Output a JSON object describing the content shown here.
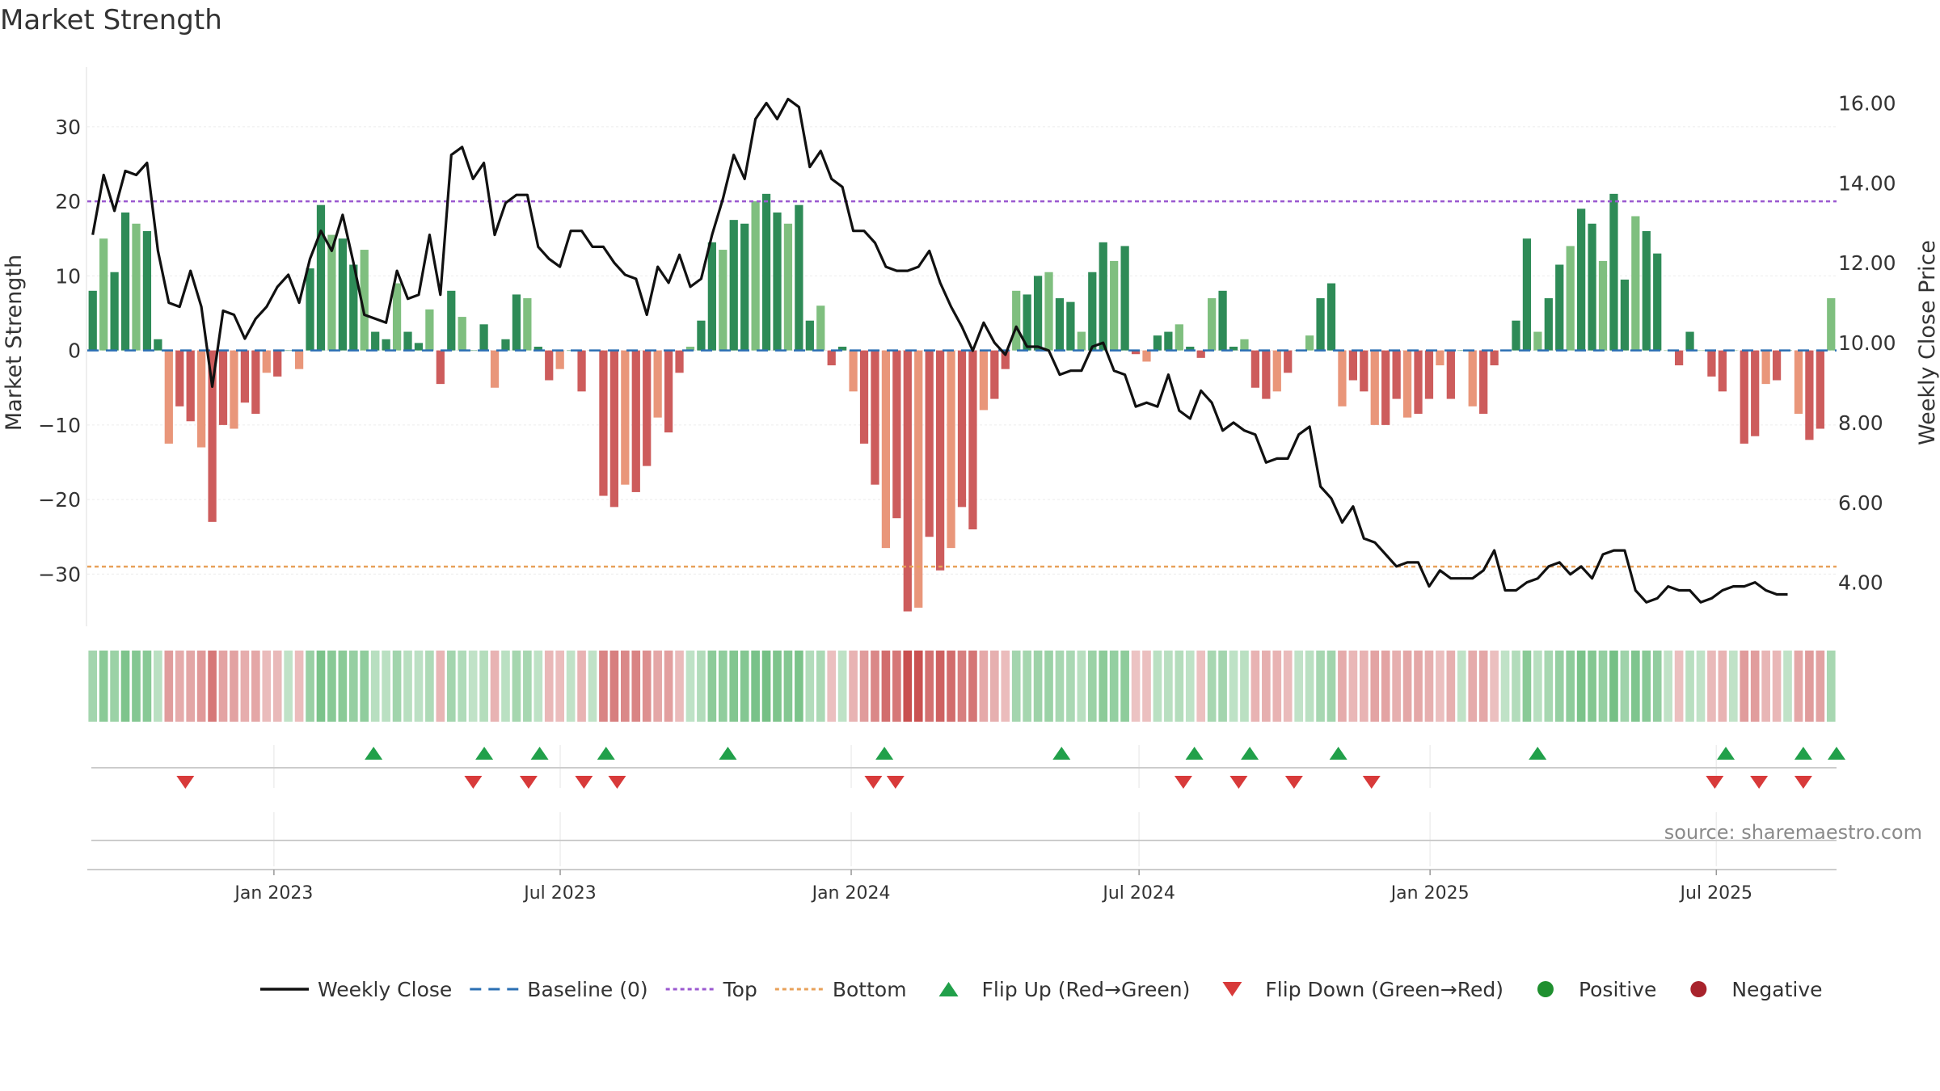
{
  "chart_data": {
    "type": "bar",
    "title": "Market Strength",
    "ylabel": "Market Strength",
    "y2label": "Weekly Close Price",
    "ylim": [
      -37,
      38
    ],
    "y2lim": [
      2.9,
      16.9
    ],
    "yticks": [
      30,
      20,
      10,
      0,
      -10,
      -20,
      -30
    ],
    "y2ticks": [
      16,
      14,
      12,
      10,
      8,
      6,
      4
    ],
    "y2tick_labels": [
      "16.00",
      "14.00",
      "12.00",
      "10.00",
      "8.00",
      "6.00",
      "4.00"
    ],
    "top_line": 20,
    "bottom_line": -29,
    "baseline": 0,
    "start_date": "2022-09-05",
    "end_date": "2025-09-15",
    "x_ticks": [
      {
        "label": "Jan 2023",
        "date": "2023-01-01"
      },
      {
        "label": "Jul 2023",
        "date": "2023-07-01"
      },
      {
        "label": "Jan 2024",
        "date": "2024-01-01"
      },
      {
        "label": "Jul 2024",
        "date": "2024-07-01"
      },
      {
        "label": "Jan 2025",
        "date": "2025-01-01"
      },
      {
        "label": "Jul 2025",
        "date": "2025-07-01"
      }
    ],
    "strength": [
      8,
      15,
      10.5,
      18.5,
      17,
      16,
      1.5,
      -12.5,
      -7.5,
      -9.5,
      -13,
      -23,
      -10,
      -10.5,
      -7,
      -8.5,
      -3,
      -3.5,
      0,
      -2.5,
      11,
      19.5,
      15.5,
      15,
      11.5,
      13.5,
      2.5,
      1.5,
      9,
      2.5,
      1,
      5.5,
      -4.5,
      8,
      4.5,
      0,
      3.5,
      -5,
      1.5,
      7.5,
      7,
      0.5,
      -4,
      -2.5,
      0,
      -5.5,
      0,
      -19.5,
      -21,
      -18,
      -19,
      -15.5,
      -9,
      -11,
      -3,
      0.5,
      4,
      14.5,
      13.5,
      17.5,
      17,
      20,
      21,
      18.5,
      17,
      19.5,
      4,
      6,
      -2,
      0.5,
      -5.5,
      -12.5,
      -18,
      -26.5,
      -22.5,
      -35,
      -34.5,
      -25,
      -29.5,
      -26.5,
      -21,
      -24,
      -8,
      -6.5,
      -2.5,
      8,
      7.5,
      10,
      10.5,
      7,
      6.5,
      2.5,
      10.5,
      14.5,
      12,
      14,
      -0.5,
      -1.5,
      2,
      2.5,
      3.5,
      0.5,
      -1,
      7,
      8,
      0.5,
      1.5,
      -5,
      -6.5,
      -5.5,
      -3,
      0,
      2,
      7,
      9,
      -7.5,
      -4,
      -5.5,
      -10,
      -10,
      -6.5,
      -9,
      -8.5,
      -6.5,
      -2,
      -6.5,
      0,
      -7.5,
      -8.5,
      -2,
      0,
      4,
      15,
      2.5,
      7,
      11.5,
      14,
      19,
      17,
      12,
      21,
      9.5,
      18,
      16,
      13,
      0,
      -2,
      2.5,
      0,
      -3.5,
      -5.5,
      0,
      -12.5,
      -11.5,
      -4.5,
      -4,
      0,
      -8.5,
      -12,
      -10.5,
      7
    ],
    "close": [
      12.7,
      14.2,
      13.3,
      14.3,
      14.2,
      14.5,
      12.3,
      11.0,
      10.9,
      11.8,
      10.9,
      8.9,
      10.8,
      10.7,
      10.1,
      10.6,
      10.9,
      11.4,
      11.7,
      11.0,
      12.1,
      12.8,
      12.3,
      13.2,
      12.0,
      10.7,
      10.6,
      10.5,
      11.8,
      11.1,
      11.2,
      12.7,
      11.2,
      14.7,
      14.9,
      14.1,
      14.5,
      12.7,
      13.5,
      13.7,
      13.7,
      12.4,
      12.1,
      11.9,
      12.8,
      12.8,
      12.4,
      12.4,
      12.0,
      11.7,
      11.6,
      10.7,
      11.9,
      11.5,
      12.2,
      11.4,
      11.6,
      12.7,
      13.6,
      14.7,
      14.1,
      15.6,
      16.0,
      15.6,
      16.1,
      15.9,
      14.4,
      14.8,
      14.1,
      13.9,
      12.8,
      12.8,
      12.5,
      11.9,
      11.8,
      11.8,
      11.9,
      12.3,
      11.5,
      10.9,
      10.4,
      9.8,
      10.5,
      10.0,
      9.7,
      10.4,
      9.9,
      9.9,
      9.8,
      9.2,
      9.3,
      9.3,
      9.9,
      10.0,
      9.3,
      9.2,
      8.4,
      8.5,
      8.4,
      9.2,
      8.3,
      8.1,
      8.8,
      8.5,
      7.8,
      8.0,
      7.8,
      7.7,
      7.0,
      7.1,
      7.1,
      7.7,
      7.9,
      6.4,
      6.1,
      5.5,
      5.9,
      5.1,
      5.0,
      4.7,
      4.4,
      4.5,
      4.5,
      3.9,
      4.3,
      4.1,
      4.1,
      4.1,
      4.3,
      4.8,
      3.8,
      3.8,
      4.0,
      4.1,
      4.4,
      4.5,
      4.2,
      4.4,
      4.1,
      4.7,
      4.8,
      4.8,
      3.8,
      3.5,
      3.6,
      3.9,
      3.8,
      3.8,
      3.5,
      3.6,
      3.8,
      3.9,
      3.9,
      4.0,
      3.8,
      3.7,
      3.7
    ],
    "flip_up_dates": [
      "2023-03-05",
      "2023-05-14",
      "2023-06-18",
      "2023-07-30",
      "2023-10-15",
      "2024-01-22",
      "2024-05-13",
      "2024-08-05",
      "2024-09-09",
      "2024-11-04",
      "2025-03-10",
      "2025-07-07",
      "2025-08-25",
      "2025-09-15"
    ],
    "flip_down_dates": [
      "2022-11-06",
      "2023-05-07",
      "2023-06-11",
      "2023-07-16",
      "2023-08-06",
      "2024-01-15",
      "2024-01-29",
      "2024-07-29",
      "2024-09-02",
      "2024-10-07",
      "2024-11-25",
      "2025-06-30",
      "2025-07-28",
      "2025-08-25"
    ],
    "legend": [
      {
        "kind": "line",
        "label": "Weekly Close",
        "color": "#111111"
      },
      {
        "kind": "dash",
        "label": "Baseline (0)",
        "color": "#2b6fb3"
      },
      {
        "kind": "dot",
        "label": "Top",
        "color": "#9b59d0"
      },
      {
        "kind": "dot",
        "label": "Bottom",
        "color": "#e8a15a"
      },
      {
        "kind": "triangle-up",
        "label": "Flip Up (Red→Green)",
        "color": "#21a04a"
      },
      {
        "kind": "triangle-down",
        "label": "Flip Down (Green→Red)",
        "color": "#d83a3a"
      },
      {
        "kind": "circle",
        "label": "Positive",
        "color": "#1f8f2f"
      },
      {
        "kind": "circle",
        "label": "Negative",
        "color": "#a8232c"
      }
    ],
    "source_text": "source: sharemaestro.com"
  },
  "colors": {
    "pos_strong": "#2e8b57",
    "pos_light": "#7fbf7f",
    "neg_strong": "#cd5c5c",
    "neg_light": "#e9967a",
    "top_line": "#9b59d0",
    "bottom_line": "#e8a15a",
    "baseline": "#2b6fb3",
    "close_line": "#111111",
    "flip_up": "#21a04a",
    "flip_down": "#d83a3a"
  }
}
